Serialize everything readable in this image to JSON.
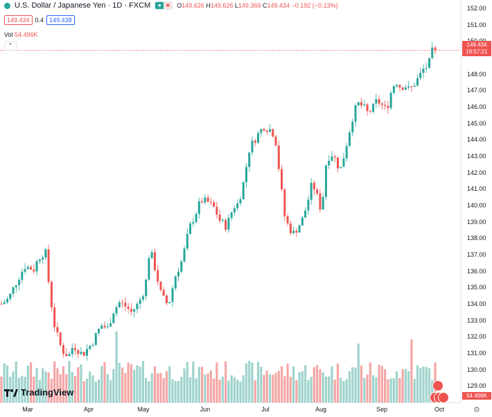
{
  "header": {
    "title": "U.S. Dollar / Japanese Yen · 1D · FXCM",
    "ohlc": {
      "o_label": "O",
      "o_value": "149.626",
      "h_label": "H",
      "h_value": "149.626",
      "l_label": "L",
      "l_value": "149.369",
      "c_label": "C",
      "c_value": "149.434",
      "change": "−0.192 (−0.13%)"
    },
    "bid": "149.434",
    "spread": "0.4",
    "ask": "149.438"
  },
  "volume": {
    "label": "Vol",
    "value": "54.496K"
  },
  "last_price": {
    "price": "149.434",
    "countdown": "16:57:21"
  },
  "branding": {
    "logo_text": "TradingView"
  },
  "colors": {
    "up": "#26a69a",
    "down": "#ef5350",
    "up_volume": "#9ed3cc",
    "down_volume": "#f4a6a5"
  },
  "chart_data": {
    "type": "candlestick",
    "title": "U.S. Dollar / Japanese Yen · 1D · FXCM",
    "y_axis": {
      "min": 128.0,
      "max": 152.5,
      "ticks": [
        "129.00",
        "130.00",
        "131.00",
        "132.00",
        "133.00",
        "134.00",
        "135.00",
        "136.00",
        "137.00",
        "138.00",
        "139.00",
        "140.00",
        "141.00",
        "142.00",
        "143.00",
        "144.00",
        "145.00",
        "146.00",
        "147.00",
        "148.00",
        "150.00",
        "151.00",
        "152.00"
      ]
    },
    "x_axis": {
      "ticks": [
        "Mar",
        "Apr",
        "May",
        "Jun",
        "Jul",
        "Aug",
        "Sep",
        "Oct"
      ]
    },
    "series": {
      "trend": [
        [
          0,
          134.0
        ],
        [
          6,
          134.3
        ],
        [
          12,
          135.2
        ],
        [
          20,
          136.3
        ],
        [
          28,
          136.1
        ],
        [
          32,
          136.8
        ],
        [
          38,
          137.2
        ],
        [
          42,
          134.5
        ],
        [
          46,
          132.6
        ],
        [
          52,
          131.2
        ],
        [
          58,
          130.8
        ],
        [
          62,
          131.5
        ],
        [
          70,
          130.9
        ],
        [
          78,
          131.6
        ],
        [
          86,
          132.7
        ],
        [
          92,
          132.5
        ],
        [
          96,
          133.5
        ],
        [
          102,
          134.1
        ],
        [
          108,
          133.8
        ],
        [
          112,
          133.5
        ],
        [
          118,
          134.0
        ],
        [
          124,
          135.0
        ],
        [
          128,
          137.4
        ],
        [
          132,
          136.3
        ],
        [
          138,
          134.5
        ],
        [
          144,
          133.9
        ],
        [
          150,
          135.7
        ],
        [
          156,
          136.7
        ],
        [
          162,
          138.6
        ],
        [
          168,
          139.6
        ],
        [
          172,
          140.3
        ],
        [
          178,
          140.2
        ],
        [
          184,
          139.8
        ],
        [
          188,
          139.1
        ],
        [
          194,
          138.7
        ],
        [
          200,
          139.9
        ],
        [
          204,
          140.1
        ],
        [
          208,
          141.1
        ],
        [
          214,
          143.5
        ],
        [
          220,
          144.2
        ],
        [
          226,
          144.8
        ],
        [
          232,
          144.6
        ],
        [
          236,
          144.2
        ],
        [
          240,
          141.8
        ],
        [
          244,
          139.4
        ],
        [
          248,
          138.6
        ],
        [
          252,
          138.3
        ],
        [
          256,
          138.7
        ],
        [
          260,
          139.2
        ],
        [
          264,
          140.2
        ],
        [
          268,
          141.4
        ],
        [
          272,
          140.6
        ],
        [
          276,
          139.6
        ],
        [
          280,
          142.6
        ],
        [
          284,
          143.2
        ],
        [
          288,
          142.8
        ],
        [
          292,
          142.1
        ],
        [
          296,
          143.2
        ],
        [
          300,
          144.5
        ],
        [
          304,
          145.7
        ],
        [
          308,
          146.2
        ],
        [
          312,
          146.0
        ],
        [
          316,
          145.6
        ],
        [
          320,
          145.9
        ],
        [
          324,
          146.4
        ],
        [
          328,
          146.1
        ],
        [
          332,
          145.8
        ],
        [
          336,
          146.9
        ],
        [
          340,
          147.6
        ],
        [
          344,
          147.2
        ],
        [
          348,
          147.3
        ],
        [
          352,
          147.0
        ],
        [
          356,
          147.4
        ],
        [
          360,
          147.8
        ],
        [
          364,
          148.3
        ],
        [
          368,
          148.5
        ],
        [
          372,
          149.5
        ],
        [
          374,
          149.43
        ]
      ],
      "last_close": 149.434
    },
    "volume": {
      "last": 54496
    }
  }
}
